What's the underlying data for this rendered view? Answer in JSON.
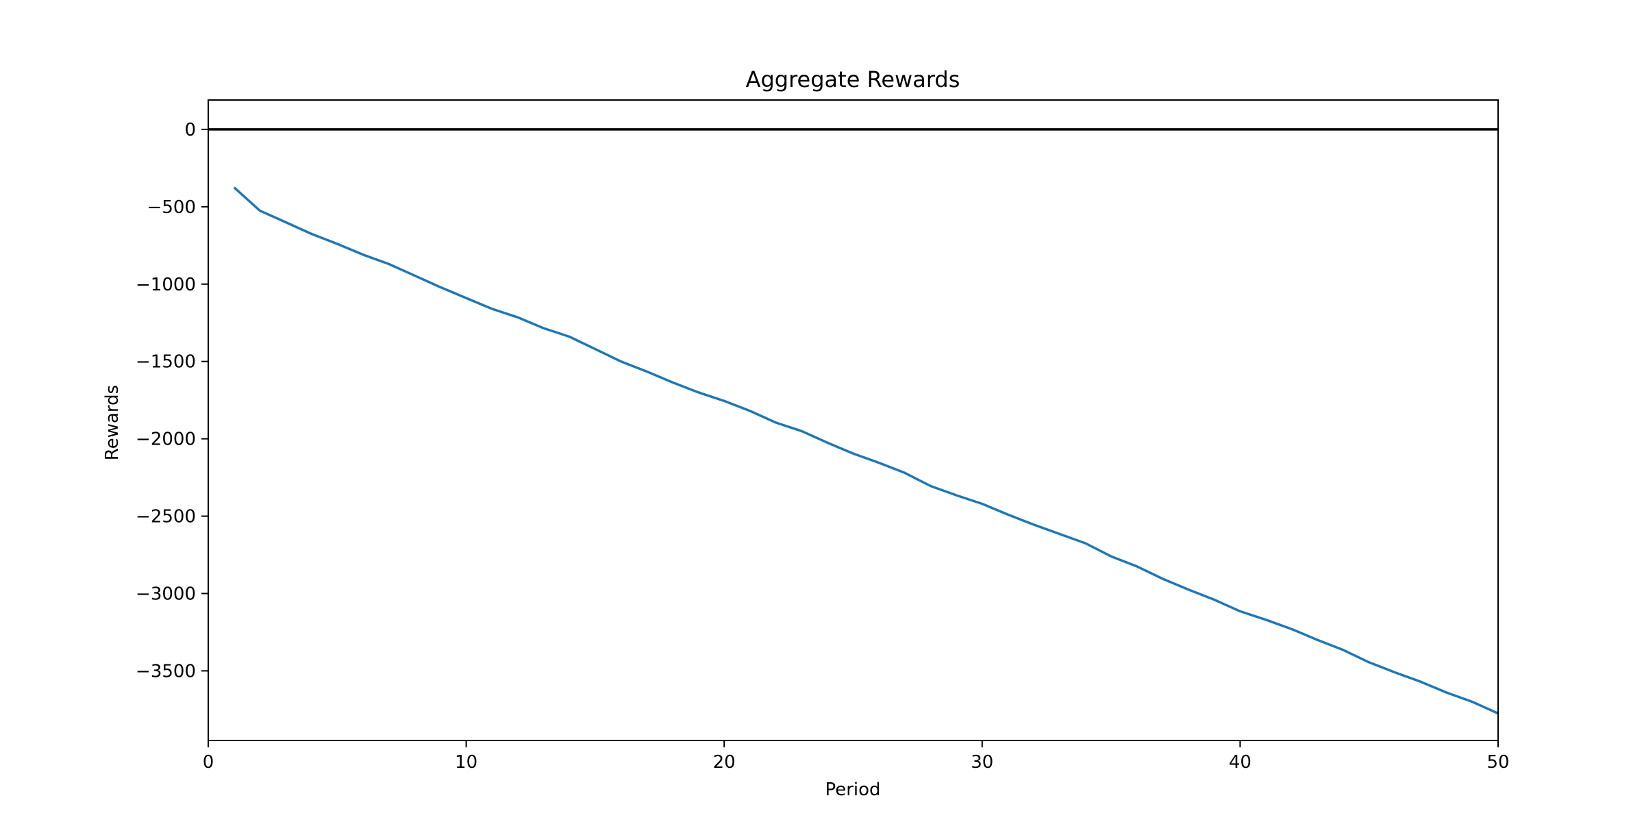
{
  "chart_data": {
    "type": "line",
    "title": "Aggregate Rewards",
    "xlabel": "Period",
    "ylabel": "Rewards",
    "xlim": [
      0,
      50
    ],
    "ylim": [
      -3950,
      190
    ],
    "x_ticks": [
      0,
      10,
      20,
      30,
      40,
      50
    ],
    "y_ticks": [
      0,
      -500,
      -1000,
      -1500,
      -2000,
      -2500,
      -3000,
      -3500
    ],
    "x_tick_labels": [
      "0",
      "10",
      "20",
      "30",
      "40",
      "50"
    ],
    "y_tick_labels": [
      "0",
      "−500",
      "−1000",
      "−1500",
      "−2000",
      "−2500",
      "−3000",
      "−3500"
    ],
    "grid": false,
    "reference_line": {
      "y": 0,
      "color": "#000000"
    },
    "series": [
      {
        "color": "#1f77b4",
        "x": [
          1,
          2,
          3,
          4,
          5,
          6,
          7,
          8,
          9,
          10,
          11,
          12,
          13,
          14,
          15,
          16,
          17,
          18,
          19,
          20,
          21,
          22,
          23,
          24,
          25,
          26,
          27,
          28,
          29,
          30,
          31,
          32,
          33,
          34,
          35,
          36,
          37,
          38,
          39,
          40,
          41,
          42,
          43,
          44,
          45,
          46,
          47,
          48,
          49,
          50
        ],
        "y": [
          -375,
          -525,
          -600,
          -675,
          -740,
          -810,
          -870,
          -945,
          -1020,
          -1090,
          -1160,
          -1215,
          -1285,
          -1340,
          -1420,
          -1500,
          -1565,
          -1635,
          -1700,
          -1755,
          -1820,
          -1895,
          -1950,
          -2025,
          -2095,
          -2155,
          -2220,
          -2305,
          -2365,
          -2420,
          -2490,
          -2555,
          -2615,
          -2675,
          -2760,
          -2825,
          -2905,
          -2975,
          -3040,
          -3115,
          -3170,
          -3230,
          -3300,
          -3365,
          -3445,
          -3510,
          -3570,
          -3640,
          -3700,
          -3775
        ]
      }
    ]
  }
}
